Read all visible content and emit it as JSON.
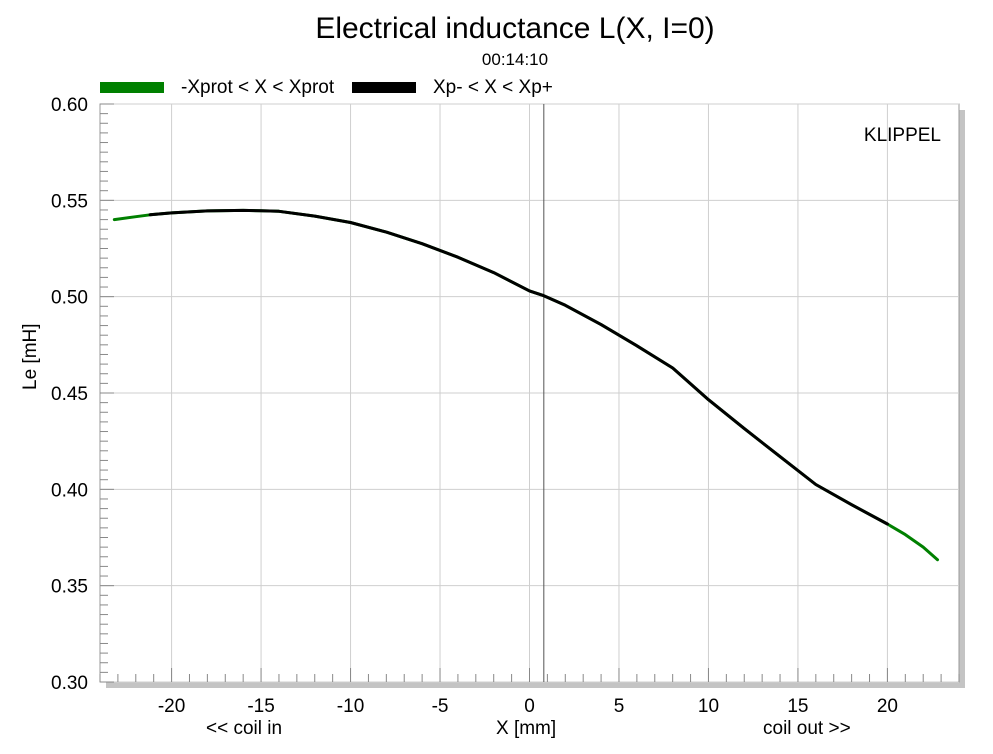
{
  "chart_data": {
    "type": "line",
    "title": "Electrical inductance L(X, I=0)",
    "subtitle": "00:14:10",
    "xlabel": "X [mm]",
    "ylabel": "Le [mH]",
    "xlabel_left": "<< coil in",
    "xlabel_right": "coil out >>",
    "watermark": "KLIPPEL",
    "xlim": [
      -24,
      24
    ],
    "ylim": [
      0.3,
      0.6
    ],
    "x_ticks": [
      -20,
      -15,
      -10,
      -5,
      0,
      5,
      10,
      15,
      20
    ],
    "y_ticks": [
      0.3,
      0.35,
      0.4,
      0.45,
      0.5,
      0.55,
      0.6
    ],
    "y_tick_labels": [
      "0.30",
      "0.35",
      "0.40",
      "0.45",
      "0.50",
      "0.55",
      "0.60"
    ],
    "vertical_marker_x": 0.8,
    "grid": true,
    "legend_position": "top-left",
    "series": [
      {
        "name": "-Xprot < X < Xprot",
        "color": "#008000",
        "x": [
          -23.2,
          -22,
          -21.2,
          -20,
          -18,
          -16,
          -15,
          -14,
          -12,
          -10,
          -8,
          -6,
          -4,
          -2,
          0,
          0.8,
          2,
          4,
          6,
          8,
          10,
          12,
          14,
          16,
          18,
          20,
          21,
          22,
          22.8
        ],
        "y": [
          0.54,
          0.5415,
          0.5425,
          0.5435,
          0.5445,
          0.5448,
          0.5446,
          0.5443,
          0.5418,
          0.5385,
          0.5335,
          0.5275,
          0.5205,
          0.5125,
          0.503,
          0.5005,
          0.4955,
          0.4855,
          0.4745,
          0.463,
          0.4465,
          0.4315,
          0.417,
          0.4025,
          0.392,
          0.382,
          0.3765,
          0.37,
          0.3635
        ]
      },
      {
        "name": "Xp- < X < Xp+",
        "color": "#000000",
        "x": [
          -21.2,
          -20,
          -18,
          -16,
          -15,
          -14,
          -12,
          -10,
          -8,
          -6,
          -4,
          -2,
          0,
          0.8,
          2,
          4,
          6,
          8,
          10,
          12,
          14,
          16,
          18,
          20
        ],
        "y": [
          0.5425,
          0.5435,
          0.5445,
          0.5448,
          0.5446,
          0.5443,
          0.5418,
          0.5385,
          0.5335,
          0.5275,
          0.5205,
          0.5125,
          0.503,
          0.5005,
          0.4955,
          0.4855,
          0.4745,
          0.463,
          0.4465,
          0.4315,
          0.417,
          0.4025,
          0.392,
          0.382
        ]
      }
    ]
  }
}
